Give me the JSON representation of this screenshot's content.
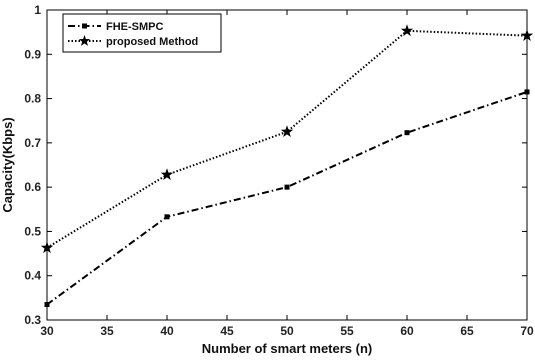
{
  "chart_data": {
    "type": "line",
    "title": "",
    "xlabel": "Number of smart meters (n)",
    "ylabel": "Capacity(Kbps)",
    "xlim": [
      30,
      70
    ],
    "ylim": [
      0.3,
      1.0
    ],
    "xticks": [
      30,
      35,
      40,
      45,
      50,
      55,
      60,
      65,
      70
    ],
    "yticks": [
      0.3,
      0.4,
      0.5,
      0.6,
      0.7,
      0.8,
      0.9,
      1.0
    ],
    "ytick_labels": [
      "0.3",
      "0.4",
      "0.5",
      "0.6",
      "0.7",
      "0.8",
      "0.9",
      "1"
    ],
    "grid": false,
    "legend_position": "top-left",
    "x": [
      30,
      40,
      50,
      60,
      70
    ],
    "series": [
      {
        "name": "FHE-SMPC",
        "values": [
          0.335,
          0.533,
          0.6,
          0.723,
          0.815
        ],
        "line_style": "dash-dot",
        "marker": "square",
        "color": "#000000"
      },
      {
        "name": "proposed Method",
        "values": [
          0.463,
          0.628,
          0.725,
          0.953,
          0.942
        ],
        "line_style": "dotted",
        "marker": "star",
        "color": "#000000"
      }
    ]
  }
}
